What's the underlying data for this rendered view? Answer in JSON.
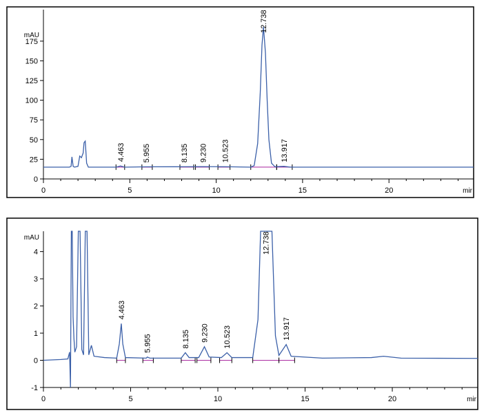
{
  "chart_data": [
    {
      "type": "line",
      "ylabel": "mAU",
      "xunit": "mir",
      "x_ticks": [
        0,
        5,
        10,
        15,
        20
      ],
      "y_ticks": [
        0,
        25,
        50,
        75,
        100,
        125,
        150,
        175
      ],
      "xlim": [
        0,
        24.9
      ],
      "ylim": [
        0,
        215
      ],
      "baseline_level": 15,
      "series": [
        {
          "points": [
            [
              0,
              15
            ],
            [
              1.5,
              15
            ],
            [
              1.6,
              16
            ],
            [
              1.65,
              28
            ],
            [
              1.72,
              16
            ],
            [
              1.8,
              15
            ],
            [
              2.0,
              16
            ],
            [
              2.1,
              29
            ],
            [
              2.2,
              27
            ],
            [
              2.3,
              33
            ],
            [
              2.35,
              46
            ],
            [
              2.42,
              48
            ],
            [
              2.5,
              20
            ],
            [
              2.6,
              15
            ],
            [
              4.2,
              15
            ],
            [
              4.463,
              16.5
            ],
            [
              4.7,
              15
            ],
            [
              5.955,
              15.4
            ],
            [
              8.135,
              15.5
            ],
            [
              9.23,
              15.6
            ],
            [
              10.523,
              15.5
            ],
            [
              12.0,
              15
            ],
            [
              12.2,
              17
            ],
            [
              12.4,
              45
            ],
            [
              12.55,
              110
            ],
            [
              12.65,
              170
            ],
            [
              12.738,
              193
            ],
            [
              12.85,
              160
            ],
            [
              12.95,
              100
            ],
            [
              13.05,
              50
            ],
            [
              13.2,
              20
            ],
            [
              13.4,
              15.5
            ],
            [
              13.917,
              16
            ],
            [
              14.3,
              15
            ],
            [
              24.9,
              15
            ]
          ]
        }
      ],
      "peaks": [
        {
          "rt": 4.463,
          "label": "4.463",
          "height": 16.5
        },
        {
          "rt": 5.955,
          "label": "5.955",
          "height": 15.4
        },
        {
          "rt": 8.135,
          "label": "8.135",
          "height": 15.5
        },
        {
          "rt": 9.23,
          "label": "9.230",
          "height": 15.6
        },
        {
          "rt": 10.523,
          "label": "10.523",
          "height": 15.5
        },
        {
          "rt": 12.738,
          "label": "12.738",
          "height": 193
        },
        {
          "rt": 13.917,
          "label": "13.917",
          "height": 16
        }
      ],
      "integration_segments": [
        [
          4.2,
          4.7
        ],
        [
          5.7,
          6.3
        ],
        [
          7.9,
          8.7
        ],
        [
          8.8,
          9.6
        ],
        [
          10.1,
          10.8
        ],
        [
          12.0,
          13.5
        ],
        [
          13.5,
          14.4
        ]
      ]
    },
    {
      "type": "line",
      "ylabel": "mAU",
      "xunit": "mir",
      "x_ticks": [
        0,
        5,
        10,
        15,
        20
      ],
      "y_ticks": [
        -1,
        0,
        1,
        2,
        3,
        4
      ],
      "xlim": [
        0,
        24.9
      ],
      "ylim": [
        -1,
        4.75
      ],
      "baseline_level": 0,
      "series": [
        {
          "points": [
            [
              0,
              0
            ],
            [
              1.0,
              0.03
            ],
            [
              1.4,
              0.05
            ],
            [
              1.5,
              0.3
            ],
            [
              1.55,
              -1
            ],
            [
              1.6,
              4.75
            ],
            [
              1.65,
              4.75
            ],
            [
              1.7,
              1.6
            ],
            [
              1.75,
              0.8
            ],
            [
              1.8,
              0.3
            ],
            [
              1.9,
              0.5
            ],
            [
              2.0,
              4.75
            ],
            [
              2.1,
              4.75
            ],
            [
              2.2,
              0.4
            ],
            [
              2.3,
              0.2
            ],
            [
              2.4,
              4.75
            ],
            [
              2.5,
              4.75
            ],
            [
              2.6,
              0.2
            ],
            [
              2.75,
              0.55
            ],
            [
              2.9,
              0.15
            ],
            [
              3.5,
              0.1
            ],
            [
              4.2,
              0.08
            ],
            [
              4.35,
              0.6
            ],
            [
              4.463,
              1.35
            ],
            [
              4.55,
              0.6
            ],
            [
              4.7,
              0.1
            ],
            [
              5.9,
              0.08
            ],
            [
              5.955,
              0.12
            ],
            [
              6.1,
              0.08
            ],
            [
              7.9,
              0.08
            ],
            [
              8.135,
              0.28
            ],
            [
              8.35,
              0.1
            ],
            [
              8.9,
              0.1
            ],
            [
              9.23,
              0.5
            ],
            [
              9.5,
              0.12
            ],
            [
              10.2,
              0.1
            ],
            [
              10.523,
              0.28
            ],
            [
              10.8,
              0.1
            ],
            [
              12.0,
              0.1
            ],
            [
              12.3,
              1.5
            ],
            [
              12.45,
              4.75
            ],
            [
              13.1,
              4.75
            ],
            [
              13.3,
              0.9
            ],
            [
              13.5,
              0.18
            ],
            [
              13.917,
              0.58
            ],
            [
              14.2,
              0.15
            ],
            [
              16.0,
              0.08
            ],
            [
              18.8,
              0.1
            ],
            [
              19.5,
              0.15
            ],
            [
              20.5,
              0.08
            ],
            [
              24.9,
              0.07
            ]
          ]
        }
      ],
      "peaks": [
        {
          "rt": 4.463,
          "label": "4.463",
          "height": 1.35
        },
        {
          "rt": 5.955,
          "label": "5.955",
          "height": 0.12
        },
        {
          "rt": 8.135,
          "label": "8.135",
          "height": 0.28
        },
        {
          "rt": 9.23,
          "label": "9.230",
          "height": 0.5
        },
        {
          "rt": 10.523,
          "label": "10.523",
          "height": 0.28
        },
        {
          "rt": 12.738,
          "label": "12.738",
          "height": 4.75
        },
        {
          "rt": 13.917,
          "label": "13.917",
          "height": 0.58
        }
      ],
      "integration_segments": [
        [
          4.2,
          4.7
        ],
        [
          5.7,
          6.3
        ],
        [
          7.9,
          8.7
        ],
        [
          8.8,
          9.6
        ],
        [
          10.1,
          10.8
        ],
        [
          12.0,
          13.5
        ],
        [
          13.5,
          14.4
        ]
      ]
    }
  ]
}
